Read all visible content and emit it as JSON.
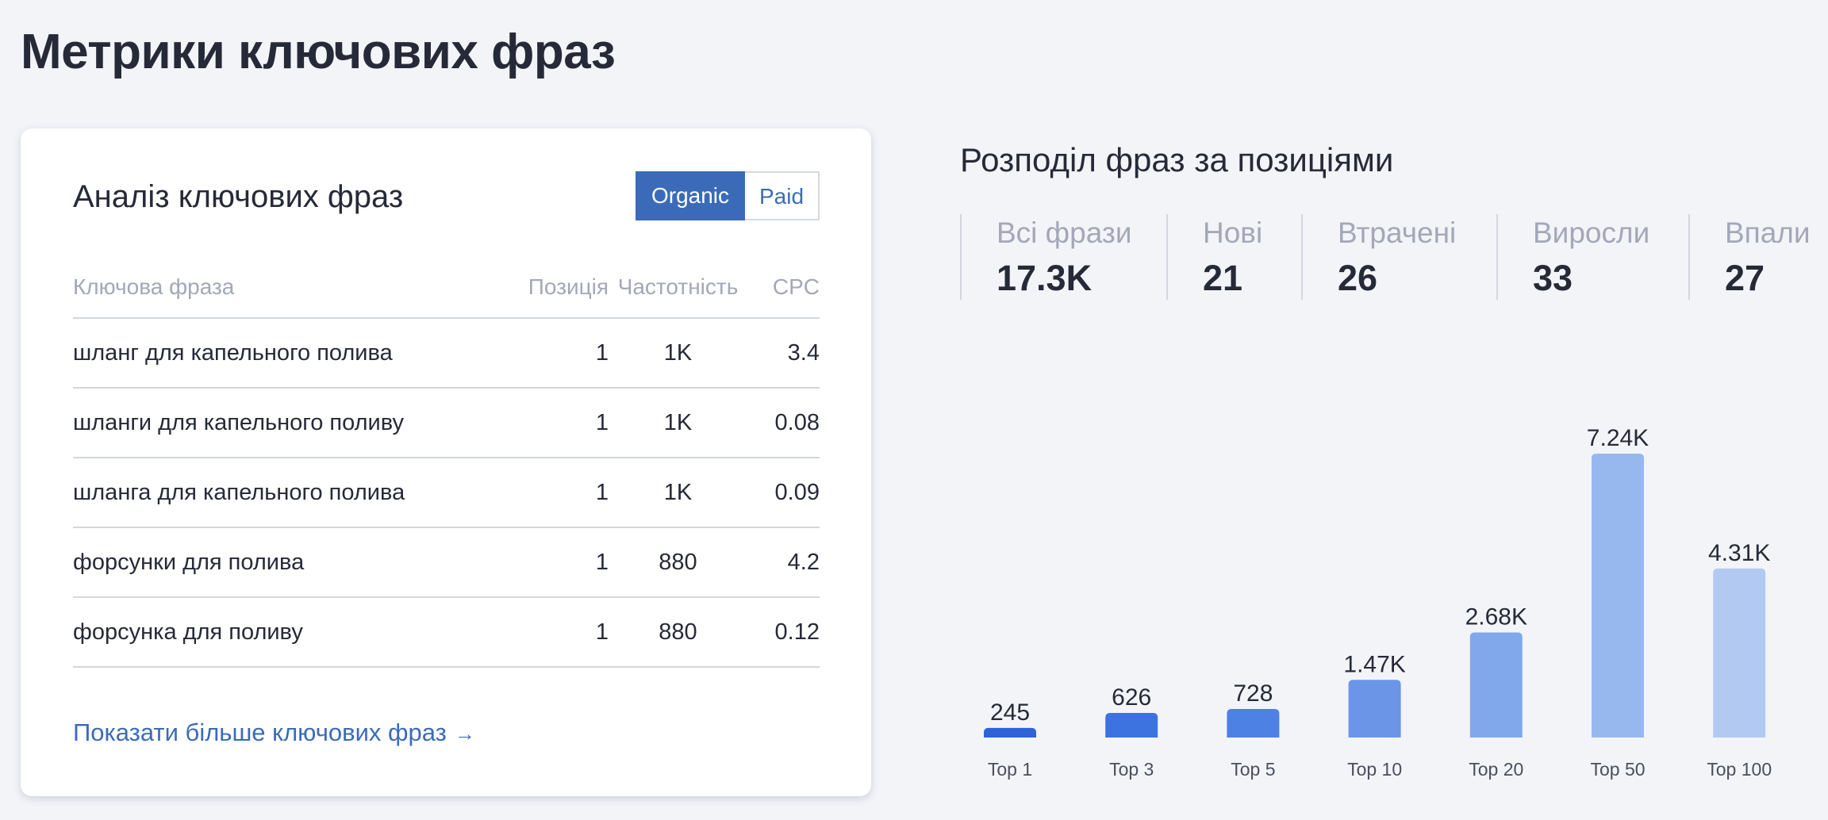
{
  "page": {
    "title": "Метрики ключових фраз"
  },
  "keywords_card": {
    "title": "Аналіз ключових фраз",
    "toggle": {
      "organic": "Organic",
      "paid": "Paid",
      "active": "organic"
    },
    "columns": {
      "phrase": "Ключова фраза",
      "position": "Позиція",
      "frequency": "Частотність",
      "cpc": "CPC"
    },
    "rows": [
      {
        "phrase": "шланг для капельного полива",
        "position": "1",
        "frequency": "1K",
        "cpc": "3.4"
      },
      {
        "phrase": "шланги для капельного поливу",
        "position": "1",
        "frequency": "1K",
        "cpc": "0.08"
      },
      {
        "phrase": "шланга для капельного полива",
        "position": "1",
        "frequency": "1K",
        "cpc": "0.09"
      },
      {
        "phrase": "форсунки для полива",
        "position": "1",
        "frequency": "880",
        "cpc": "4.2"
      },
      {
        "phrase": "форсунка для поливу",
        "position": "1",
        "frequency": "880",
        "cpc": "0.12"
      }
    ],
    "show_more": {
      "label": "Показати більше ключових фраз",
      "arrow": "→"
    }
  },
  "distribution": {
    "title": "Розподіл фраз за позиціями",
    "stats": [
      {
        "label": "Всі фрази",
        "value": "17.3K"
      },
      {
        "label": "Нові",
        "value": "21"
      },
      {
        "label": "Втрачені",
        "value": "26"
      },
      {
        "label": "Виросли",
        "value": "33"
      },
      {
        "label": "Впали",
        "value": "27"
      }
    ]
  },
  "chart_data": {
    "type": "bar",
    "categories": [
      "Top 1",
      "Top 3",
      "Top 5",
      "Top 10",
      "Top 20",
      "Top 50",
      "Top 100"
    ],
    "values": [
      245,
      626,
      728,
      1470,
      2680,
      7240,
      4310
    ],
    "data_labels": [
      "245",
      "626",
      "728",
      "1.47K",
      "2.68K",
      "7.24K",
      "4.31K"
    ],
    "colors": [
      "#2f63d6",
      "#3d73e0",
      "#4e81e4",
      "#6b96e8",
      "#82a8ec",
      "#97b8ef",
      "#b2caf2"
    ],
    "title": "",
    "xlabel": "",
    "ylabel": "",
    "ylim": [
      0,
      7240
    ],
    "grid": false
  }
}
